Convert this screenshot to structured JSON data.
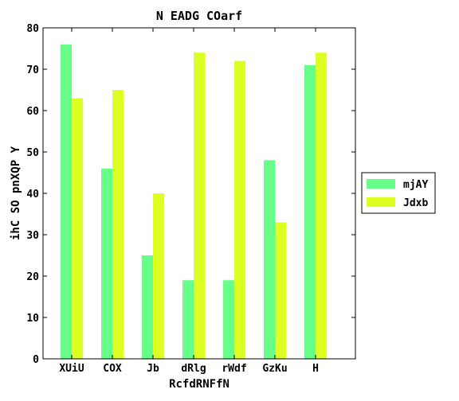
{
  "chart_data": {
    "type": "bar",
    "title": "N EADG COarf",
    "xlabel": "RcfdRNFfN",
    "ylabel": "ihC SO pnXQP Y",
    "categories": [
      "XUiU",
      "COX",
      "Jb",
      "dRlg",
      "rWdf",
      "GzKu",
      "H"
    ],
    "ylim": [
      0,
      80
    ],
    "yticks": [
      0,
      10,
      20,
      30,
      40,
      50,
      60,
      70,
      80
    ],
    "grid": false,
    "legend_position": "right",
    "series": [
      {
        "name": "mjAY",
        "color": "#66ff88",
        "values": [
          76,
          46,
          25,
          19,
          19,
          48,
          71
        ]
      },
      {
        "name": "Jdxb",
        "color": "#ddff22",
        "values": [
          63,
          65,
          40,
          74,
          72,
          33,
          74
        ]
      }
    ]
  }
}
